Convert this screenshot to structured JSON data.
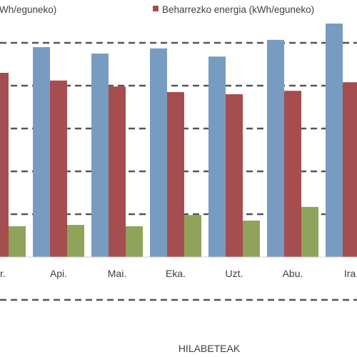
{
  "chart_data": {
    "type": "bar",
    "categories": [
      "ar.",
      "Api.",
      "Mai.",
      "Eka.",
      "Uzt.",
      "Abu.",
      "Ira."
    ],
    "series": [
      {
        "name": "Wh/eguneko)",
        "color": "#789CC1",
        "values": [
          null,
          4.9,
          4.75,
          4.87,
          4.68,
          5.07,
          5.45
        ]
      },
      {
        "name": "Beharrezko energia (kWh/eguneko)",
        "color": "#A64D4F",
        "values": [
          4.3,
          4.12,
          3.98,
          3.85,
          3.8,
          3.88,
          4.08
        ]
      },
      {
        "name": "",
        "color": "#8FA35A",
        "values": [
          0.72,
          0.75,
          0.72,
          0.98,
          0.85,
          1.17,
          null
        ]
      }
    ],
    "xlabel": "HILABETEAK",
    "ylim": [
      -1,
      5.5
    ],
    "grid": true,
    "legend_position": "top"
  }
}
